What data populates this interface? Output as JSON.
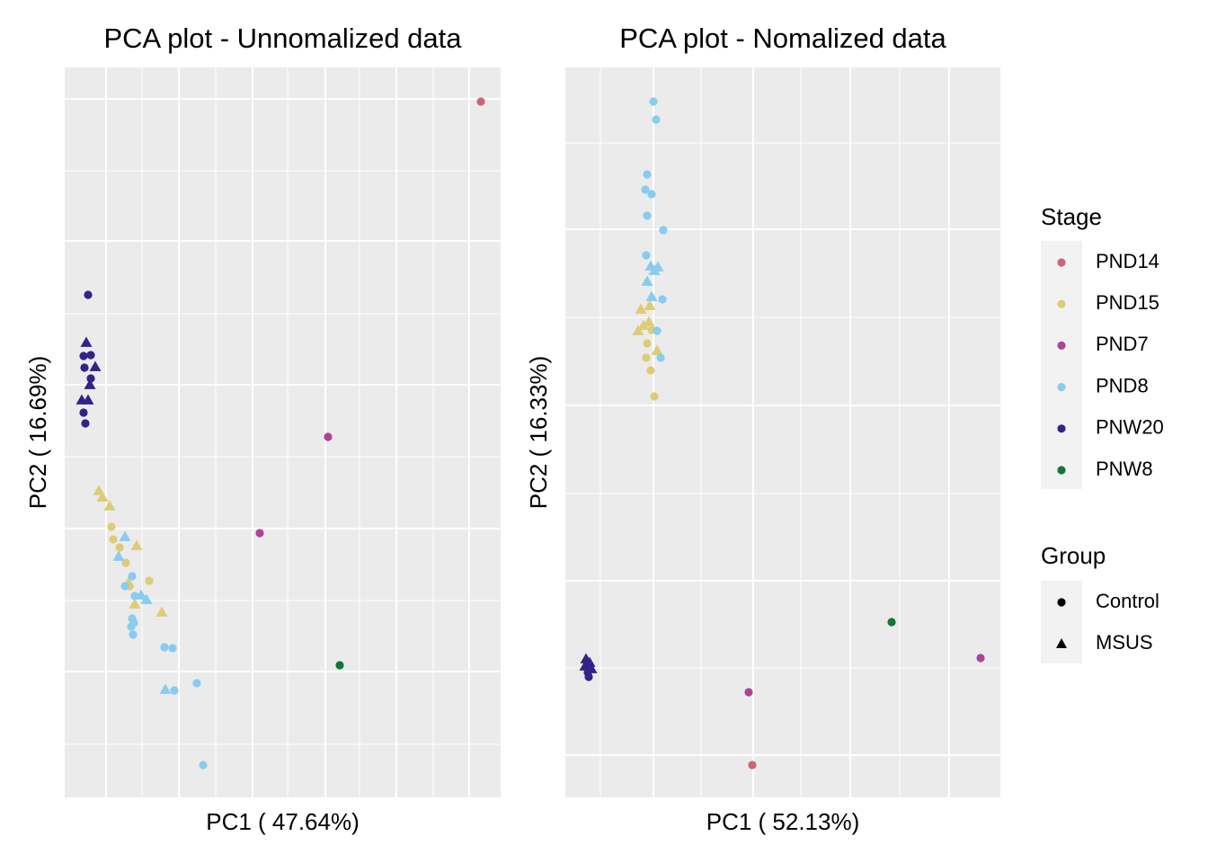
{
  "chart_data": [
    {
      "type": "scatter",
      "title": "PCA plot - Unnomalized data",
      "x_label": "PC1 ( 47.64%)",
      "y_label": "PC2 ( 16.69%)",
      "xlim": [
        0,
        485
      ],
      "ylim": [
        0,
        812
      ],
      "xticks": [
        46,
        127,
        209,
        290,
        369,
        450
      ],
      "yticks": [
        140,
        299,
        459,
        619,
        777
      ],
      "xminor": [
        86,
        168,
        248,
        328,
        410
      ],
      "yminor": [
        59,
        219,
        379,
        538,
        697
      ],
      "grid": true,
      "series": [
        {
          "name": "PND14",
          "color": "#cc6677",
          "x": [
            463
          ],
          "y": [
            774
          ],
          "shape": [
            "circle"
          ]
        },
        {
          "name": "PND15",
          "color": "#ddcc77",
          "x": [
            38,
            42,
            50,
            80,
            71,
            78,
            108,
            52,
            54,
            61,
            68,
            94,
            72
          ],
          "y": [
            341,
            334,
            324,
            280,
            239,
            215,
            206,
            301,
            287,
            278,
            261,
            241,
            235
          ],
          "shape": [
            "triangle",
            "triangle",
            "triangle",
            "triangle",
            "triangle",
            "triangle",
            "triangle",
            "circle",
            "circle",
            "circle",
            "circle",
            "circle",
            "circle"
          ]
        },
        {
          "name": "PND7",
          "color": "#aa4499",
          "x": [
            293,
            217
          ],
          "y": [
            401,
            294
          ],
          "shape": [
            "circle",
            "circle"
          ]
        },
        {
          "name": "PND8",
          "color": "#88ccee",
          "x": [
            67,
            75,
            78,
            75,
            77,
            74,
            76,
            111,
            120,
            147,
            122,
            154,
            67,
            60,
            85,
            91,
            112
          ],
          "y": [
            235,
            246,
            224,
            199,
            194,
            190,
            181,
            167,
            166,
            127,
            119,
            36,
            290,
            268,
            225,
            220,
            120
          ],
          "shape": [
            "circle",
            "circle",
            "circle",
            "circle",
            "circle",
            "circle",
            "circle",
            "circle",
            "circle",
            "circle",
            "circle",
            "circle",
            "triangle",
            "triangle",
            "triangle",
            "triangle",
            "triangle"
          ]
        },
        {
          "name": "PNW20",
          "color": "#332288",
          "x": [
            26,
            21,
            29,
            22,
            29,
            21,
            23,
            24,
            34,
            28,
            19,
            26
          ],
          "y": [
            559,
            491,
            492,
            478,
            466,
            428,
            416,
            506,
            479,
            459,
            442,
            442
          ],
          "shape": [
            "circle",
            "circle",
            "circle",
            "circle",
            "circle",
            "circle",
            "circle",
            "triangle",
            "triangle",
            "triangle",
            "triangle",
            "triangle"
          ]
        },
        {
          "name": "PNW8",
          "color": "#117733",
          "x": [
            306
          ],
          "y": [
            147
          ],
          "shape": [
            "circle"
          ]
        }
      ]
    },
    {
      "type": "scatter",
      "title": "PCA plot - Nomalized data",
      "x_label": "PC1 ( 52.13%)",
      "y_label": "PC2 ( 16.33%)",
      "xlim": [
        0,
        484
      ],
      "ylim": [
        0,
        812
      ],
      "xticks": [
        98,
        209,
        317,
        427
      ],
      "yticks": [
        47,
        241,
        436,
        632
      ],
      "xminor": [
        39,
        151,
        262,
        372
      ],
      "yminor": [
        144,
        338,
        534,
        728
      ],
      "grid": true,
      "series": [
        {
          "name": "PND14",
          "color": "#cc6677",
          "x": [
            208
          ],
          "y": [
            36
          ],
          "shape": [
            "circle"
          ]
        },
        {
          "name": "PND15",
          "color": "#ddcc77",
          "x": [
            94,
            84,
            93,
            87,
            81,
            102,
            91,
            90,
            95,
            99,
            96
          ],
          "y": [
            547,
            543,
            529,
            525,
            519,
            497,
            505,
            489,
            475,
            446,
            520
          ],
          "shape": [
            "triangle",
            "triangle",
            "triangle",
            "triangle",
            "triangle",
            "triangle",
            "circle",
            "circle",
            "circle",
            "circle",
            "circle"
          ]
        },
        {
          "name": "PND7",
          "color": "#aa4499",
          "x": [
            204,
            462
          ],
          "y": [
            117,
            155
          ],
          "shape": [
            "circle",
            "circle"
          ]
        },
        {
          "name": "PND8",
          "color": "#88ccee",
          "x": [
            98,
            101,
            91,
            89,
            96,
            91,
            109,
            90,
            108,
            102,
            106,
            95,
            103,
            99,
            91,
            96
          ],
          "y": [
            774,
            754,
            693,
            676,
            671,
            647,
            631,
            603,
            554,
            519,
            489,
            591,
            590,
            586,
            574,
            557
          ],
          "shape": [
            "circle",
            "circle",
            "circle",
            "circle",
            "circle",
            "circle",
            "circle",
            "circle",
            "circle",
            "circle",
            "circle",
            "triangle",
            "triangle",
            "triangle",
            "triangle",
            "triangle"
          ]
        },
        {
          "name": "PNW20",
          "color": "#332288",
          "x": [
            23,
            27,
            22,
            29,
            25,
            26
          ],
          "y": [
            154,
            150,
            146,
            143,
            139,
            134
          ],
          "shape": [
            "triangle",
            "triangle",
            "triangle",
            "triangle",
            "circle",
            "circle"
          ]
        },
        {
          "name": "PNW8",
          "color": "#117733",
          "x": [
            363
          ],
          "y": [
            195
          ],
          "shape": [
            "circle"
          ]
        }
      ]
    }
  ],
  "legend": {
    "stage_title": "Stage",
    "group_title": "Group",
    "groups": [
      {
        "name": "Control",
        "shape": "circle"
      },
      {
        "name": "MSUS",
        "shape": "triangle"
      }
    ]
  }
}
